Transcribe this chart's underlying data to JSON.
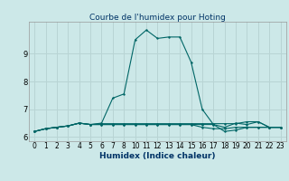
{
  "title": "Courbe de l'humidex pour Hoting",
  "xlabel": "Humidex (Indice chaleur)",
  "bg_color": "#cce8e8",
  "grid_color": "#b8d4d4",
  "line_color": "#006666",
  "x_indices": [
    0,
    1,
    2,
    3,
    4,
    5,
    6,
    7,
    8,
    9,
    10,
    11,
    12,
    13,
    14,
    15,
    16,
    17,
    18,
    19,
    20,
    21,
    22
  ],
  "x_labels": [
    "0",
    "1",
    "2",
    "3",
    "4",
    "5",
    "6",
    "7",
    "8",
    "10",
    "11",
    "12",
    "13",
    "14",
    "15",
    "16",
    "17",
    "18",
    "19",
    "20",
    "21",
    "22",
    "23"
  ],
  "y_main": [
    6.2,
    6.3,
    6.35,
    6.4,
    6.5,
    6.45,
    6.5,
    7.4,
    7.55,
    9.5,
    9.85,
    9.55,
    9.6,
    9.6,
    8.7,
    7.0,
    6.45,
    6.35,
    6.5,
    6.45,
    6.55,
    6.35,
    6.35
  ],
  "y_extra1": [
    6.2,
    6.3,
    6.35,
    6.4,
    6.5,
    6.45,
    6.45,
    6.45,
    6.45,
    6.45,
    6.45,
    6.45,
    6.45,
    6.45,
    6.45,
    6.35,
    6.3,
    6.3,
    6.35,
    6.35,
    6.35,
    6.35,
    6.35
  ],
  "y_extra2": [
    6.2,
    6.3,
    6.35,
    6.4,
    6.5,
    6.45,
    6.45,
    6.45,
    6.45,
    6.45,
    6.45,
    6.45,
    6.45,
    6.45,
    6.45,
    6.45,
    6.45,
    6.2,
    6.25,
    6.35,
    6.35,
    6.35,
    6.35
  ],
  "y_extra3": [
    6.2,
    6.3,
    6.35,
    6.4,
    6.5,
    6.45,
    6.48,
    6.48,
    6.48,
    6.48,
    6.48,
    6.48,
    6.48,
    6.48,
    6.48,
    6.48,
    6.48,
    6.48,
    6.48,
    6.55,
    6.55,
    6.35,
    6.35
  ],
  "ylim": [
    5.85,
    10.15
  ],
  "yticks": [
    6,
    7,
    8,
    9
  ],
  "xlabel_fontsize": 6.5,
  "xlabel_color": "#003366",
  "tick_fontsize": 5.5,
  "ytick_fontsize": 6.0,
  "title_fontsize": 6.5,
  "title_color": "#003366"
}
